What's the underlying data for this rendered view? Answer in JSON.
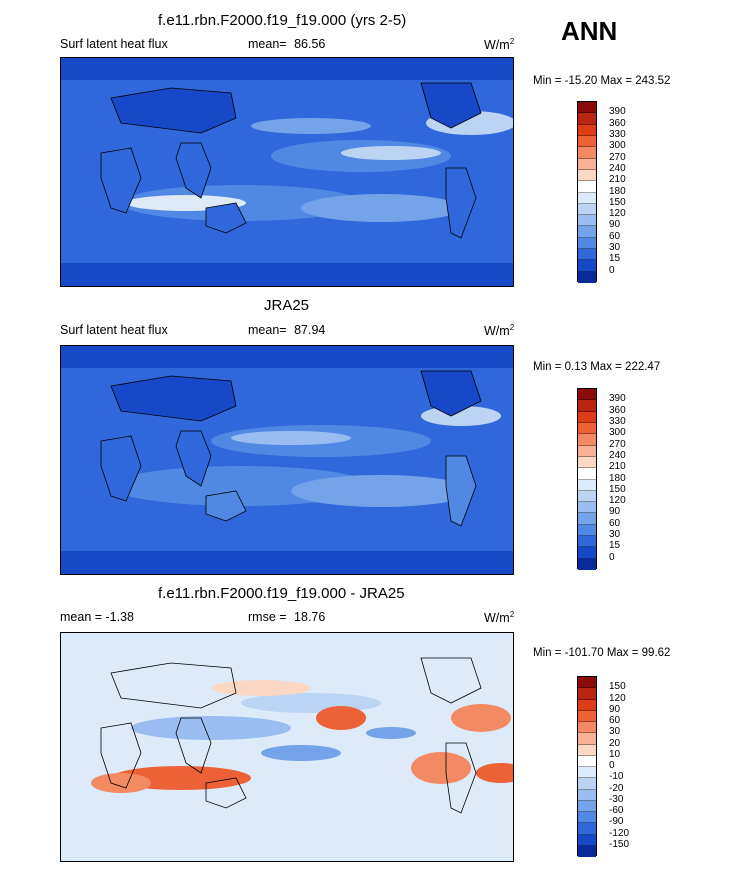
{
  "season": "ANN",
  "panels": [
    {
      "title": "f.e11.rbn.F2000.f19_f19.000 (yrs 2-5)",
      "left_label": "Surf latent heat flux",
      "stat_label": "mean=",
      "stat_value": "86.56",
      "units": "W/m",
      "units_exp": "2",
      "minmax": "Min = -15.20 Max = 243.52",
      "colorbar": {
        "colors": [
          "#8b0a0a",
          "#b82510",
          "#dc3f18",
          "#ec6236",
          "#f48a63",
          "#f8b196",
          "#fbd8c4",
          "#ffffff",
          "#dceaf9",
          "#bcd4f4",
          "#99bdf0",
          "#75a3ea",
          "#5088e4",
          "#3068dc",
          "#1748c8",
          "#0a2a9c"
        ],
        "ticks": [
          "390",
          "360",
          "330",
          "300",
          "270",
          "240",
          "210",
          "180",
          "150",
          "120",
          "90",
          "60",
          "30",
          "15",
          "0"
        ]
      }
    },
    {
      "title": "JRA25",
      "left_label": "Surf latent heat flux",
      "stat_label": "mean=",
      "stat_value": "87.94",
      "units": "W/m",
      "units_exp": "2",
      "minmax": "Min =  0.13 Max = 222.47",
      "colorbar": {
        "colors": [
          "#8b0a0a",
          "#b82510",
          "#dc3f18",
          "#ec6236",
          "#f48a63",
          "#f8b196",
          "#fbd8c4",
          "#ffffff",
          "#dceaf9",
          "#bcd4f4",
          "#99bdf0",
          "#75a3ea",
          "#5088e4",
          "#3068dc",
          "#1748c8",
          "#0a2a9c"
        ],
        "ticks": [
          "390",
          "360",
          "330",
          "300",
          "270",
          "240",
          "210",
          "180",
          "150",
          "120",
          "90",
          "60",
          "30",
          "15",
          "0"
        ]
      }
    },
    {
      "title": "f.e11.rbn.F2000.f19_f19.000 - JRA25",
      "left_label": "mean =  -1.38",
      "stat_label": "rmse =",
      "stat_value": "18.76",
      "units": "W/m",
      "units_exp": "2",
      "minmax": "Min = -101.70 Max =  99.62",
      "colorbar": {
        "colors": [
          "#8b0a0a",
          "#b82510",
          "#dc3f18",
          "#ec6236",
          "#f48a63",
          "#f8b196",
          "#fbd8c4",
          "#ffffff",
          "#dceaf9",
          "#bcd4f4",
          "#99bdf0",
          "#75a3ea",
          "#5088e4",
          "#3068dc",
          "#1748c8",
          "#0a2a9c"
        ],
        "ticks": [
          "150",
          "120",
          "90",
          "60",
          "30",
          "20",
          "10",
          "0",
          "-10",
          "-20",
          "-30",
          "-60",
          "-90",
          "-120",
          "-150"
        ]
      }
    }
  ]
}
